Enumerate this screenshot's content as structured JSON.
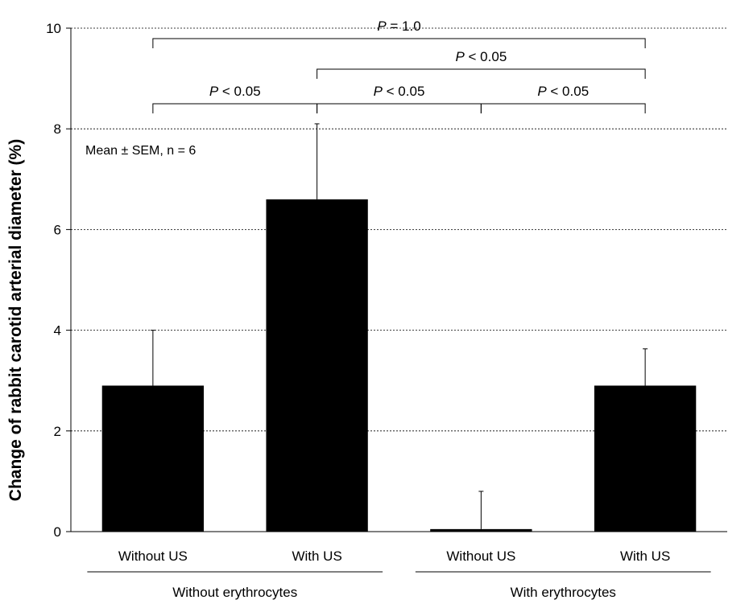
{
  "chart_data": {
    "type": "bar",
    "title": "",
    "ylabel": "Change of rabbit carotid arterial diameter (%)",
    "xlabel": "",
    "ylim": [
      0,
      10
    ],
    "yticks": [
      0,
      2,
      4,
      6,
      8,
      10
    ],
    "ytick_labels": [
      "0",
      "2",
      "4",
      "6",
      "8",
      "10"
    ],
    "grid": "horizontal dotted",
    "categories": [
      "Without US",
      "With US",
      "Without US",
      "With US"
    ],
    "groups": [
      {
        "label": "Without erythrocytes",
        "members": [
          0,
          1
        ]
      },
      {
        "label": "With erythrocytes",
        "members": [
          2,
          3
        ]
      }
    ],
    "values": [
      2.9,
      6.6,
      0.05,
      2.9
    ],
    "error_upper": [
      1.1,
      1.5,
      0.75,
      0.73
    ],
    "annotation": "Mean ± SEM, n = 6",
    "comparisons": [
      {
        "from": 0,
        "to": 1,
        "p_symbol": "P",
        "p_rest": " < 0.05",
        "level": 1
      },
      {
        "from": 1,
        "to": 2,
        "p_symbol": "P",
        "p_rest": " < 0.05",
        "level": 1
      },
      {
        "from": 2,
        "to": 3,
        "p_symbol": "P",
        "p_rest": " < 0.05",
        "level": 1
      },
      {
        "from": 1,
        "to": 3,
        "p_symbol": "P",
        "p_rest": " < 0.05",
        "level": 2
      },
      {
        "from": 0,
        "to": 3,
        "p_symbol": "P",
        "p_rest": " = 1.0",
        "level": 3
      }
    ]
  }
}
